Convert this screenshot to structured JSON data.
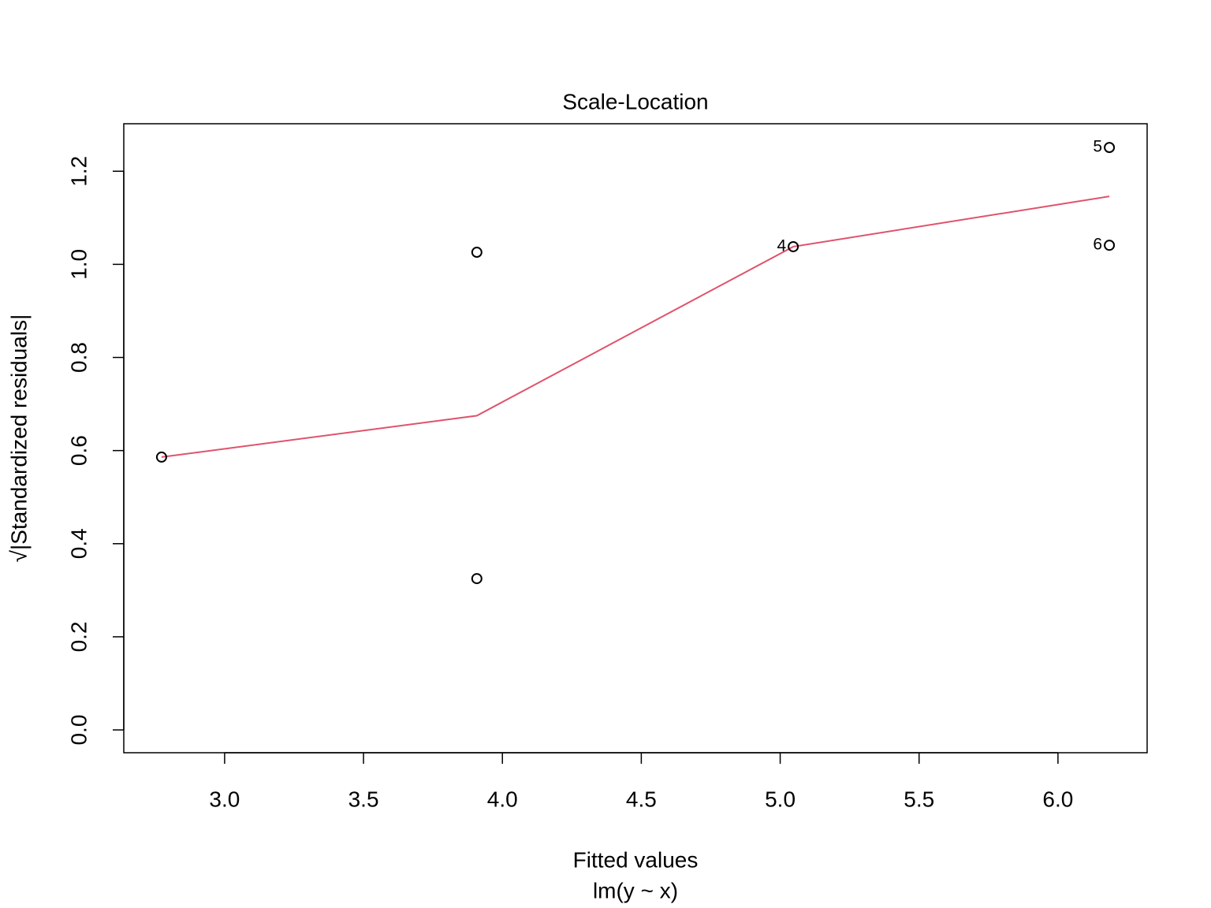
{
  "chart_data": {
    "type": "scatter",
    "title": "Scale-Location",
    "xlabel": "Fitted values",
    "subtitle": "lm(y ~ x)",
    "ylabel": "√|Standardized residuals|",
    "x": [
      2.773,
      3.908,
      3.908,
      5.047,
      6.185,
      6.185
    ],
    "values": [
      0.586,
      1.026,
      0.325,
      1.038,
      1.251,
      1.041
    ],
    "labels": [
      null,
      null,
      null,
      "4",
      "5",
      "6"
    ],
    "color": "#000000",
    "smooth": {
      "x": [
        2.773,
        3.908,
        5.047,
        6.185
      ],
      "values": [
        0.586,
        0.675,
        1.038,
        1.146
      ],
      "color": "#DF536B"
    },
    "xlim": [
      2.637,
      6.321
    ],
    "ylim": [
      -0.049,
      1.302
    ],
    "xticks": [
      {
        "value": 3,
        "label": "3.0"
      },
      3.5,
      {
        "value": 4,
        "label": "4.0"
      },
      4.5,
      {
        "value": 5,
        "label": "5.0"
      },
      5.5,
      {
        "value": 6,
        "label": "6.0"
      }
    ],
    "yticks": [
      {
        "value": 0,
        "label": "0.0"
      },
      0.2,
      0.4,
      0.6,
      0.8,
      {
        "value": 1,
        "label": "1.0"
      },
      1.2
    ]
  }
}
